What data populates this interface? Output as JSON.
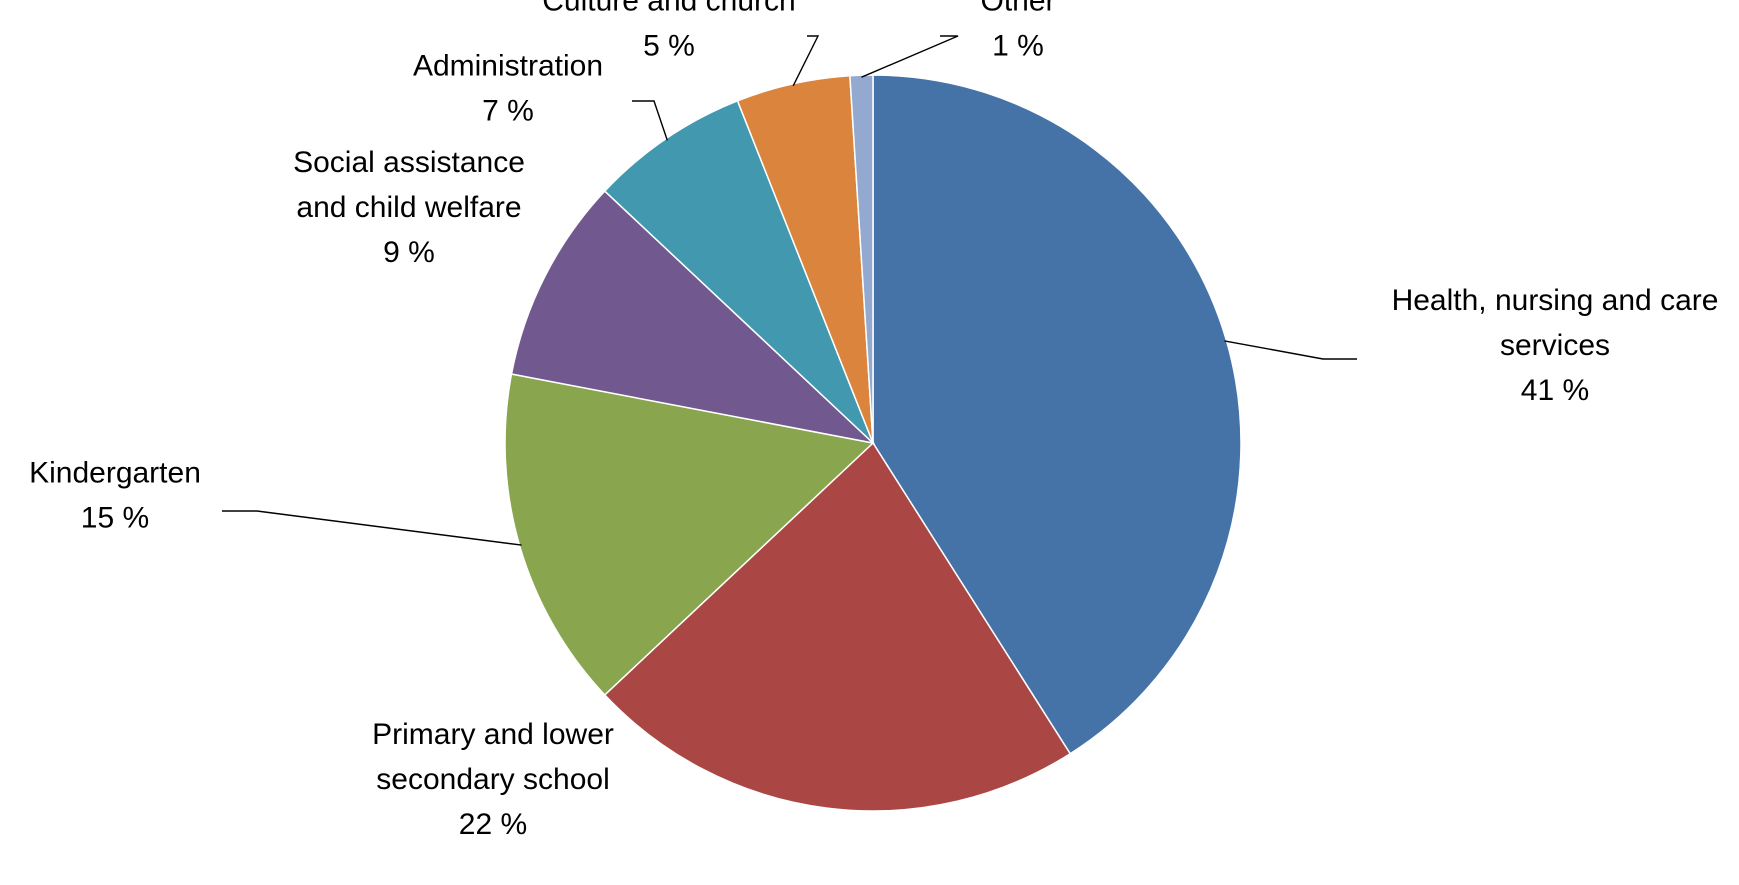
{
  "chart_data": {
    "type": "pie",
    "title": "",
    "slices": [
      {
        "label": "Health, nursing and care services",
        "label_lines": [
          "Health, nursing and care",
          "services"
        ],
        "value": 41,
        "value_label": "41 %",
        "color": "#4572A7"
      },
      {
        "label": "Primary and lower secondary school",
        "label_lines": [
          "Primary and lower",
          "secondary school"
        ],
        "value": 22,
        "value_label": "22 %",
        "color": "#AA4643"
      },
      {
        "label": "Kindergarten",
        "label_lines": [
          "Kindergarten"
        ],
        "value": 15,
        "value_label": "15 %",
        "color": "#89A54E"
      },
      {
        "label": "Social assistance and child welfare",
        "label_lines": [
          "Social assistance",
          "and child welfare"
        ],
        "value": 9,
        "value_label": "9 %",
        "color": "#71588F"
      },
      {
        "label": "Administration",
        "label_lines": [
          "Administration"
        ],
        "value": 7,
        "value_label": "7 %",
        "color": "#4198AF"
      },
      {
        "label": "Culture and church",
        "label_lines": [
          "Culture and church"
        ],
        "value": 5,
        "value_label": "5 %",
        "color": "#DB843D"
      },
      {
        "label": "Other",
        "label_lines": [
          "Other"
        ],
        "value": 1,
        "value_label": "1 %",
        "color": "#93A9CF"
      }
    ],
    "start_angle": "12 o'clock",
    "direction": "clockwise",
    "legend": "none",
    "data_labels": "outside with leader lines"
  }
}
